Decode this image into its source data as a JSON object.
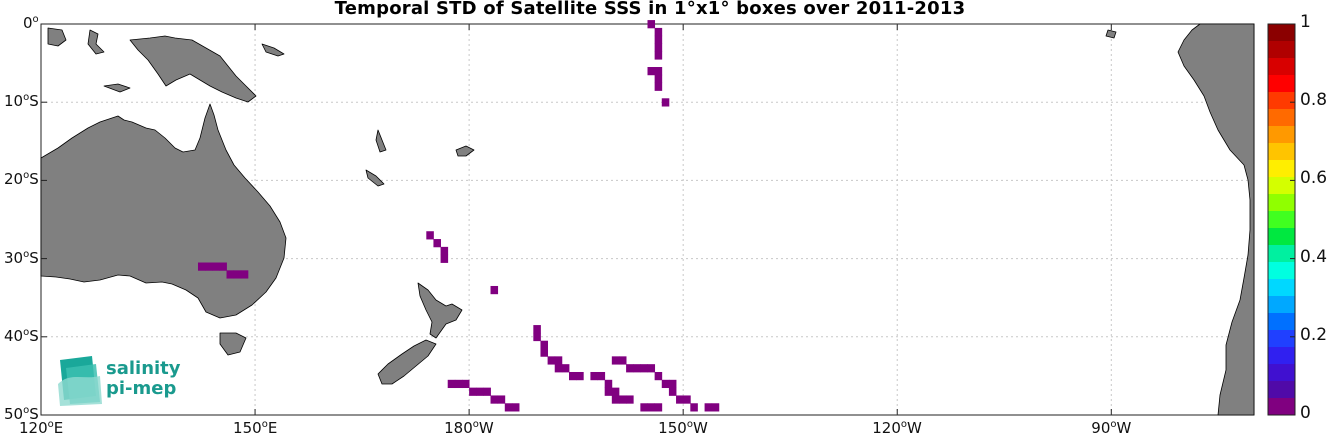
{
  "title": "Temporal STD of Satellite SSS in 1°x1° boxes over 2011-2013",
  "logo": {
    "line1": "salinity",
    "line2": "pi-mep"
  },
  "map": {
    "lon_range": [
      120,
      290
    ],
    "lat_range": [
      -50,
      0
    ],
    "land_color": "#808080",
    "grid": "dotted",
    "lon_ticks": [
      {
        "lon": 120,
        "label": "120",
        "hem": "E"
      },
      {
        "lon": 150,
        "label": "150",
        "hem": "E"
      },
      {
        "lon": 180,
        "label": "180",
        "hem": "W"
      },
      {
        "lon": 210,
        "label": "150",
        "hem": "W"
      },
      {
        "lon": 240,
        "label": "120",
        "hem": "W"
      },
      {
        "lon": 270,
        "label": "90",
        "hem": "W"
      }
    ],
    "lat_ticks": [
      {
        "lat": 0,
        "label": "0",
        "hem": ""
      },
      {
        "lat": -10,
        "label": "10",
        "hem": "S"
      },
      {
        "lat": -20,
        "label": "20",
        "hem": "S"
      },
      {
        "lat": -30,
        "label": "30",
        "hem": "S"
      },
      {
        "lat": -40,
        "label": "40",
        "hem": "S"
      },
      {
        "lat": -50,
        "label": "50",
        "hem": "S"
      }
    ]
  },
  "chart_data": {
    "type": "heatmap",
    "title": "Temporal STD of Satellite SSS in 1°x1° boxes over 2011-2013",
    "xlabel": "",
    "ylabel": "",
    "value_range": [
      0,
      1
    ],
    "cell_size_deg": 1,
    "cell_value": 0.0,
    "cell_color": "#800080",
    "cells_lonlat": [
      [
        205,
        0
      ],
      [
        206,
        -1
      ],
      [
        206,
        -2
      ],
      [
        206,
        -3
      ],
      [
        206,
        -4
      ],
      [
        205,
        -6
      ],
      [
        206,
        -6
      ],
      [
        206,
        -7
      ],
      [
        206,
        -8
      ],
      [
        207,
        -10
      ],
      [
        142,
        -31
      ],
      [
        143,
        -31
      ],
      [
        144,
        -31
      ],
      [
        145,
        -31
      ],
      [
        146,
        -32
      ],
      [
        147,
        -32
      ],
      [
        148,
        -32
      ],
      [
        174,
        -27
      ],
      [
        175,
        -28
      ],
      [
        176,
        -29
      ],
      [
        176,
        -30
      ],
      [
        183,
        -34
      ],
      [
        177,
        -46
      ],
      [
        178,
        -46
      ],
      [
        179,
        -46
      ],
      [
        180,
        -47
      ],
      [
        181,
        -47
      ],
      [
        182,
        -47
      ],
      [
        183,
        -48
      ],
      [
        184,
        -48
      ],
      [
        185,
        -49
      ],
      [
        186,
        -49
      ],
      [
        189,
        -39
      ],
      [
        189,
        -40
      ],
      [
        190,
        -41
      ],
      [
        190,
        -42
      ],
      [
        191,
        -43
      ],
      [
        192,
        -43
      ],
      [
        192,
        -44
      ],
      [
        193,
        -44
      ],
      [
        194,
        -45
      ],
      [
        195,
        -45
      ],
      [
        197,
        -45
      ],
      [
        198,
        -45
      ],
      [
        199,
        -46
      ],
      [
        199,
        -47
      ],
      [
        200,
        -47
      ],
      [
        200,
        -48
      ],
      [
        201,
        -48
      ],
      [
        202,
        -48
      ],
      [
        200,
        -43
      ],
      [
        201,
        -43
      ],
      [
        202,
        -44
      ],
      [
        203,
        -44
      ],
      [
        204,
        -44
      ],
      [
        205,
        -44
      ],
      [
        206,
        -45
      ],
      [
        207,
        -46
      ],
      [
        208,
        -46
      ],
      [
        208,
        -47
      ],
      [
        209,
        -48
      ],
      [
        210,
        -48
      ],
      [
        211,
        -49
      ],
      [
        204,
        -49
      ],
      [
        205,
        -49
      ],
      [
        206,
        -49
      ],
      [
        213,
        -49
      ],
      [
        214,
        -49
      ]
    ]
  },
  "colorbar": {
    "tick_labels": [
      "1",
      "0.8",
      "0.6",
      "0.4",
      "0.2",
      "0"
    ],
    "colors": [
      "#8b0000",
      "#b00000",
      "#d80000",
      "#ff0000",
      "#ff3a00",
      "#ff6a00",
      "#ff9900",
      "#ffc400",
      "#ffee00",
      "#d4ff00",
      "#90ff00",
      "#40ff20",
      "#00e840",
      "#00f0a0",
      "#00ffe0",
      "#00d8ff",
      "#00a8ff",
      "#0070ff",
      "#2040ff",
      "#3020f0",
      "#4010d0",
      "#500aa8",
      "#800080"
    ]
  }
}
